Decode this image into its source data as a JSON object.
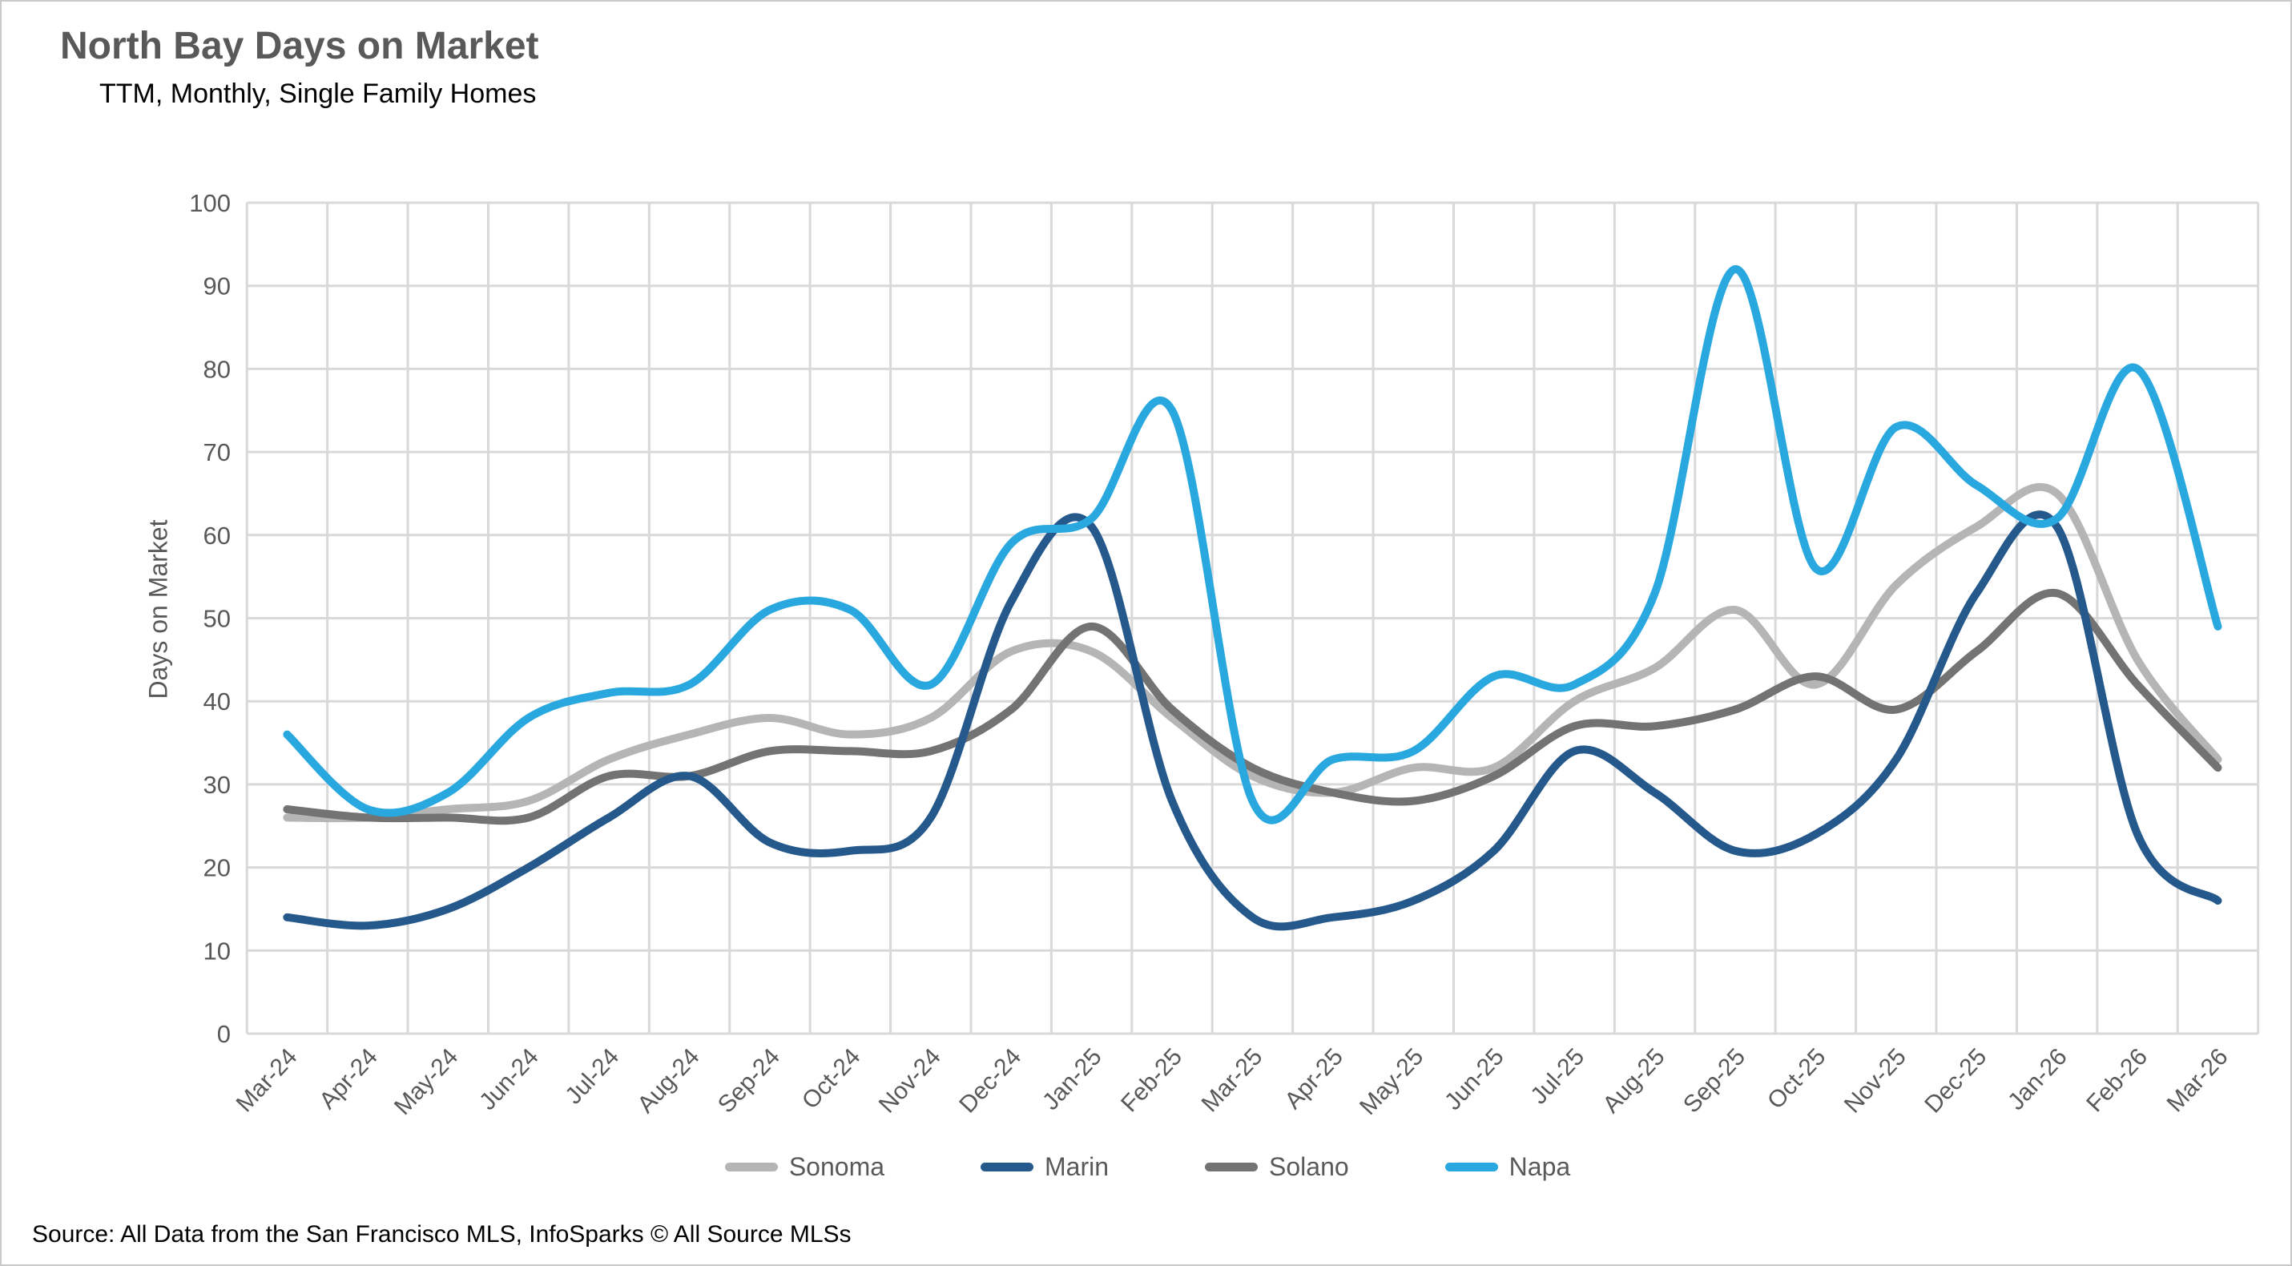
{
  "header": {
    "title": "North Bay Days on Market",
    "subtitle": "TTM, Monthly, Single Family Homes"
  },
  "footer": {
    "source": "Source: All Data from the San Francisco MLS, InfoSparks © All Source MLSs"
  },
  "colors": {
    "title_text": "#595959",
    "axis_text": "#595959",
    "gridline": "#d9d9d9",
    "background": "#ffffff"
  },
  "chart_data": {
    "type": "line",
    "title": "North Bay Days on Market",
    "subtitle": "TTM, Monthly, Single Family Homes",
    "xlabel": "",
    "ylabel": "Days on Market",
    "ylim": [
      0,
      100
    ],
    "ytick_step": 10,
    "yticks": [
      0,
      10,
      20,
      30,
      40,
      50,
      60,
      70,
      80,
      90,
      100
    ],
    "grid": true,
    "smooth_lines": true,
    "legend_position": "bottom",
    "categories": [
      "Mar-24",
      "Apr-24",
      "May-24",
      "Jun-24",
      "Jul-24",
      "Aug-24",
      "Sep-24",
      "Oct-24",
      "Nov-24",
      "Dec-24",
      "Jan-25",
      "Feb-25",
      "Mar-25",
      "Apr-25",
      "May-25",
      "Jun-25",
      "Jul-25",
      "Aug-25",
      "Sep-25",
      "Oct-25",
      "Nov-25",
      "Dec-25",
      "Jan-26",
      "Feb-26",
      "Mar-26"
    ],
    "series": [
      {
        "name": "Sonoma",
        "color": "#b5b5b5",
        "values": [
          26,
          26,
          27,
          28,
          33,
          36,
          38,
          36,
          38,
          46,
          46,
          38,
          31,
          29,
          32,
          32,
          40,
          44,
          51,
          42,
          54,
          61,
          65,
          45,
          33
        ]
      },
      {
        "name": "Marin",
        "color": "#25598c",
        "values": [
          14,
          13,
          15,
          20,
          26,
          31,
          23,
          22,
          26,
          52,
          61,
          28,
          14,
          14,
          16,
          22,
          34,
          29,
          22,
          24,
          33,
          53,
          61,
          24,
          16
        ]
      },
      {
        "name": "Solano",
        "color": "#737373",
        "values": [
          27,
          26,
          26,
          26,
          31,
          31,
          34,
          34,
          34,
          39,
          49,
          39,
          32,
          29,
          28,
          31,
          37,
          37,
          39,
          43,
          39,
          46,
          53,
          42,
          32
        ]
      },
      {
        "name": "Napa",
        "color": "#29a8df",
        "values": [
          36,
          27,
          29,
          38,
          41,
          42,
          51,
          51,
          42,
          59,
          62,
          75,
          28,
          33,
          34,
          43,
          42,
          53,
          92,
          56,
          73,
          66,
          62,
          80,
          49
        ]
      }
    ],
    "draw_order": [
      "Sonoma",
      "Solano",
      "Marin",
      "Napa"
    ]
  }
}
